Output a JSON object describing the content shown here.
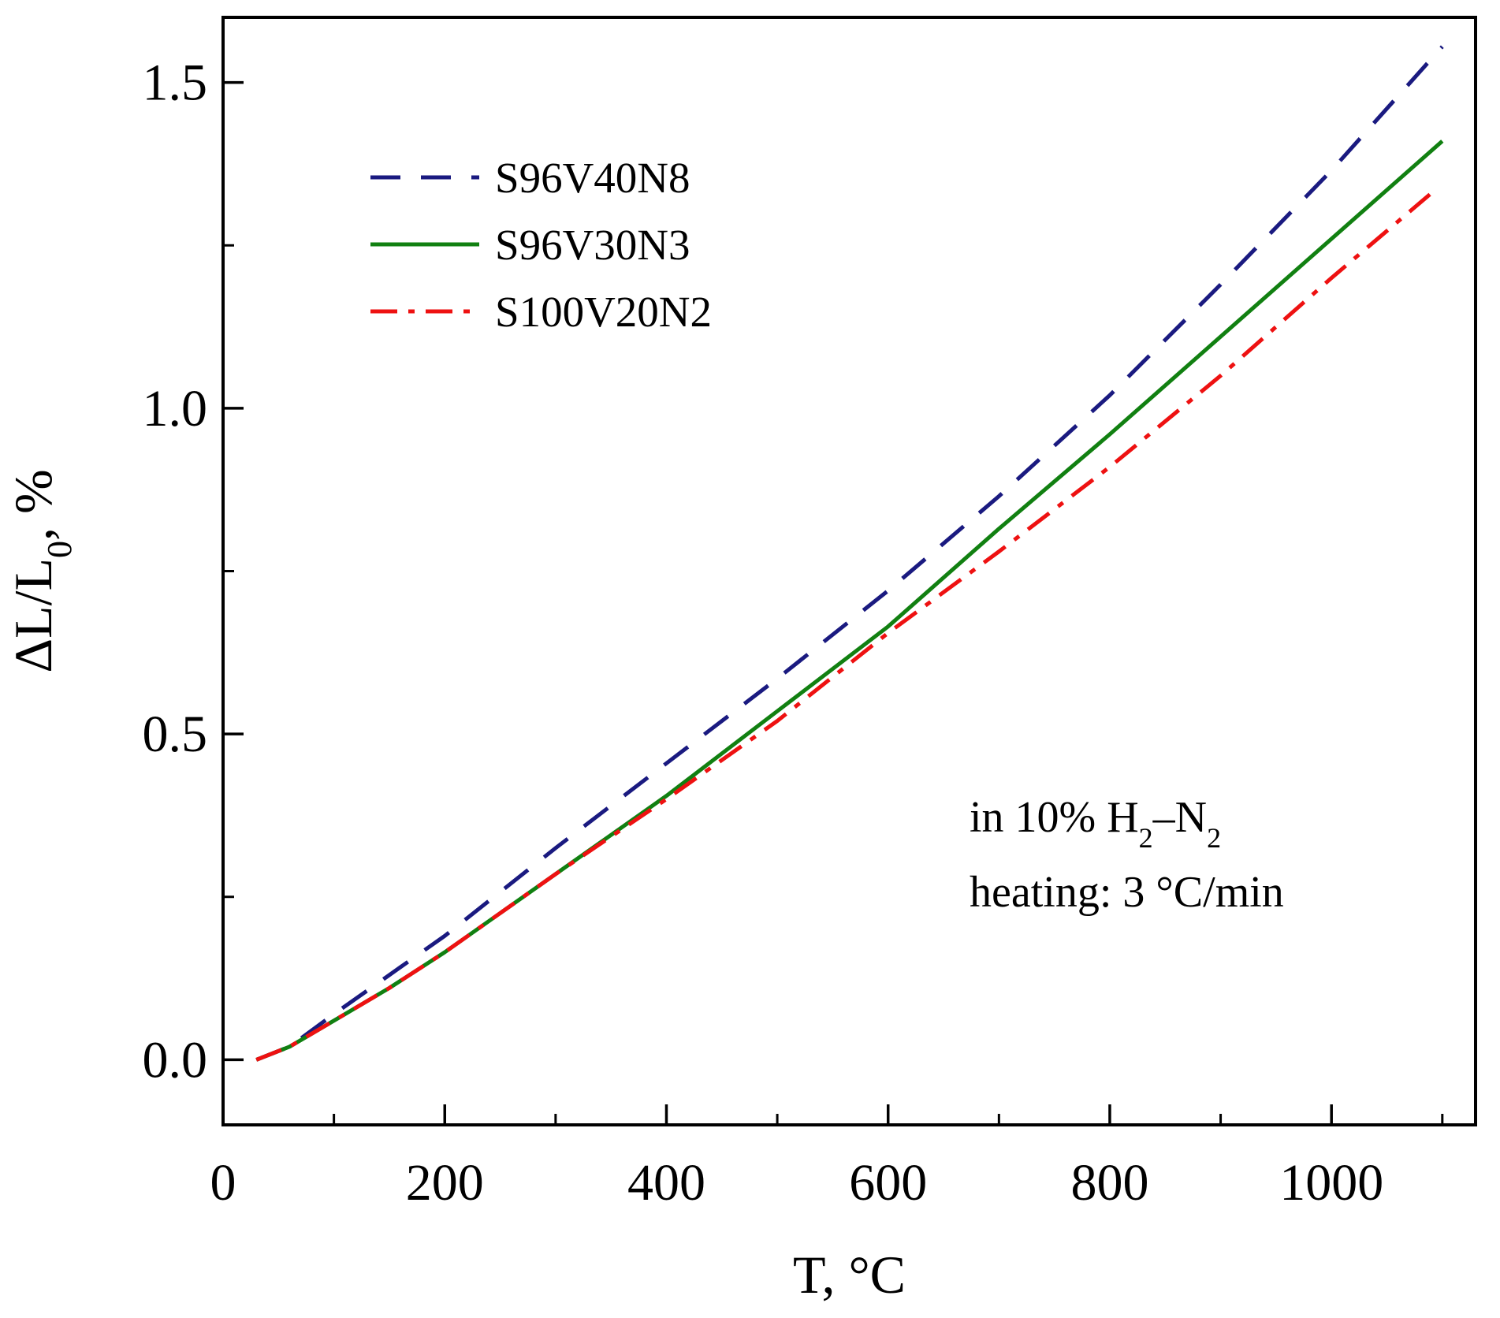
{
  "chart_data": {
    "type": "line",
    "title": "",
    "xlabel": "T, °C",
    "ylabel": {
      "parts": [
        {
          "text": "ΔL/L",
          "sub": false
        },
        {
          "text": "0",
          "sub": true
        },
        {
          "text": ", %",
          "sub": false
        }
      ]
    },
    "xlim": [
      0,
      1130
    ],
    "ylim": [
      -0.1,
      1.6
    ],
    "x_major_ticks": [
      0,
      200,
      400,
      600,
      800,
      1000
    ],
    "x_minor_ticks": [
      100,
      300,
      500,
      700,
      900,
      1100
    ],
    "x_tick_labels": [
      "0",
      "200",
      "400",
      "600",
      "800",
      "1000"
    ],
    "y_major_ticks": [
      0.0,
      0.5,
      1.0,
      1.5
    ],
    "y_minor_ticks": [
      0.25,
      0.75,
      1.25
    ],
    "y_tick_labels": [
      "0.0",
      "0.5",
      "1.0",
      "1.5"
    ],
    "grid": false,
    "legend_position": "top-left",
    "series": [
      {
        "name": "S96V40N8",
        "color": "#1a1a80",
        "dash": "dashed",
        "x": [
          30,
          60,
          100,
          150,
          200,
          300,
          400,
          500,
          600,
          700,
          800,
          900,
          1000,
          1100
        ],
        "y": [
          0.0,
          0.02,
          0.07,
          0.13,
          0.19,
          0.325,
          0.455,
          0.585,
          0.72,
          0.865,
          1.02,
          1.19,
          1.365,
          1.555
        ]
      },
      {
        "name": "S96V30N3",
        "color": "#118011",
        "dash": "solid",
        "x": [
          30,
          60,
          100,
          150,
          200,
          300,
          400,
          500,
          600,
          700,
          800,
          900,
          1000,
          1100
        ],
        "y": [
          0.0,
          0.02,
          0.06,
          0.11,
          0.165,
          0.285,
          0.405,
          0.535,
          0.665,
          0.815,
          0.96,
          1.11,
          1.26,
          1.41
        ]
      },
      {
        "name": "S100V20N2",
        "color": "#ee1111",
        "dash": "dashdot",
        "x": [
          30,
          60,
          100,
          150,
          200,
          300,
          400,
          500,
          600,
          700,
          800,
          900,
          1000,
          1090
        ],
        "y": [
          0.0,
          0.02,
          0.06,
          0.11,
          0.165,
          0.285,
          0.4,
          0.52,
          0.655,
          0.78,
          0.91,
          1.05,
          1.2,
          1.33
        ]
      }
    ],
    "annotations": [
      {
        "parts": [
          {
            "text": "in 10% H",
            "sub": false
          },
          {
            "text": "2",
            "sub": true
          },
          {
            "text": "–N",
            "sub": false
          },
          {
            "text": "2",
            "sub": true
          }
        ]
      },
      {
        "parts": [
          {
            "text": "heating: 3 °C/min",
            "sub": false
          }
        ]
      }
    ]
  }
}
